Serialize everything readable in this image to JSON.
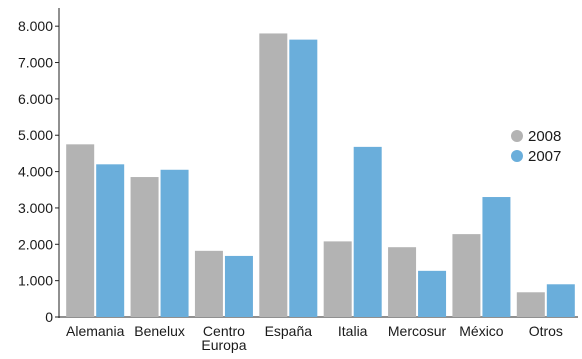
{
  "chart_data": {
    "type": "bar",
    "categories": [
      "Alemania",
      "Benelux",
      "Centro\nEuropa",
      "España",
      "Italia",
      "Mercosur",
      "México",
      "Otros"
    ],
    "series": [
      {
        "name": "2008",
        "color": "#b3b3b3",
        "values": [
          4750,
          3850,
          1820,
          7800,
          2080,
          1920,
          2280,
          680
        ]
      },
      {
        "name": "2007",
        "color": "#6aaedb",
        "values": [
          4200,
          4050,
          1680,
          7630,
          4680,
          1270,
          3300,
          900
        ]
      }
    ],
    "ylim": [
      0,
      8500
    ],
    "yticks": [
      0,
      1000,
      2000,
      3000,
      4000,
      5000,
      6000,
      7000,
      8000
    ],
    "ytick_labels": [
      "0",
      "1.000",
      "2.000",
      "3.000",
      "4.000",
      "5.000",
      "6.000",
      "7.000",
      "8.000"
    ],
    "legend": {
      "position": "right",
      "order": [
        "2008",
        "2007"
      ]
    },
    "grid": false,
    "title": "",
    "xlabel": "",
    "ylabel": ""
  }
}
